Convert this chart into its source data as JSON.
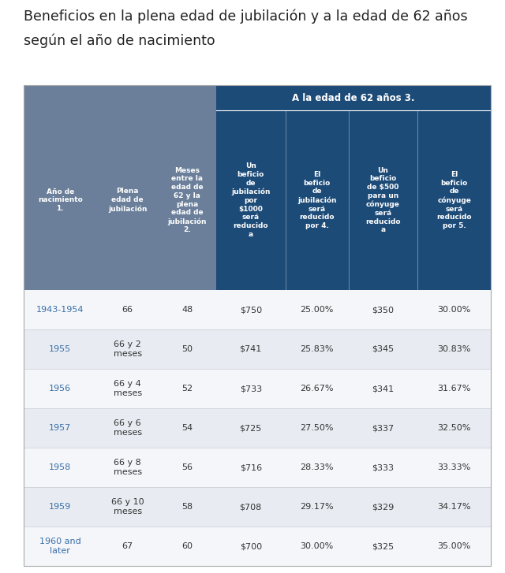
{
  "title_line1": "Beneficios en la plena edad de jubilación y a la edad de 62 años",
  "title_line2": "según el año de nacimiento",
  "title_fontsize": 12.5,
  "bg_color": "#ffffff",
  "header_bg_left": "#6b7f9a",
  "header_bg_right": "#1d4b78",
  "col1_color": "#3a6fa8",
  "data_color": "#333333",
  "header_text_color": "#ffffff",
  "subheader": "A la edad de 62 años 3.",
  "col_headers": [
    "Año de\nnacimiento\n1.",
    "Plena\nedad de\njubilación",
    "Meses\nentre la\nedad de\n62 y la\nplena\nedad de\njubilación\n2.",
    "Un\nbeficio\nde\njubilación\npor\n$1000\nserá\nreducido\na",
    "El\nbeficio\nde\njubilación\nserá\nreducido\npor 4.",
    "Un\nbeficio\nde $500\npara un\ncónyuge\nserá\nreducido\na",
    "El\nbeficio\nde\ncónyuge\nserá\nreducido\npor 5."
  ],
  "rows": [
    [
      "1943-1954",
      "66",
      "48",
      "$750",
      "25.00%",
      "$350",
      "30.00%"
    ],
    [
      "1955",
      "66 y 2\nmeses",
      "50",
      "$741",
      "25.83%",
      "$345",
      "30.83%"
    ],
    [
      "1956",
      "66 y 4\nmeses",
      "52",
      "$733",
      "26.67%",
      "$341",
      "31.67%"
    ],
    [
      "1957",
      "66 y 6\nmeses",
      "54",
      "$725",
      "27.50%",
      "$337",
      "32.50%"
    ],
    [
      "1958",
      "66 y 8\nmeses",
      "56",
      "$716",
      "28.33%",
      "$333",
      "33.33%"
    ],
    [
      "1959",
      "66 y 10\nmeses",
      "58",
      "$708",
      "29.17%",
      "$329",
      "34.17%"
    ],
    [
      "1960 and\nlater",
      "67",
      "60",
      "$700",
      "30.00%",
      "$325",
      "35.00%"
    ]
  ],
  "row_bg_even": "#f4f6f9",
  "row_bg_odd": "#e8ecf2",
  "row_sep_color": "#c8cdd5"
}
